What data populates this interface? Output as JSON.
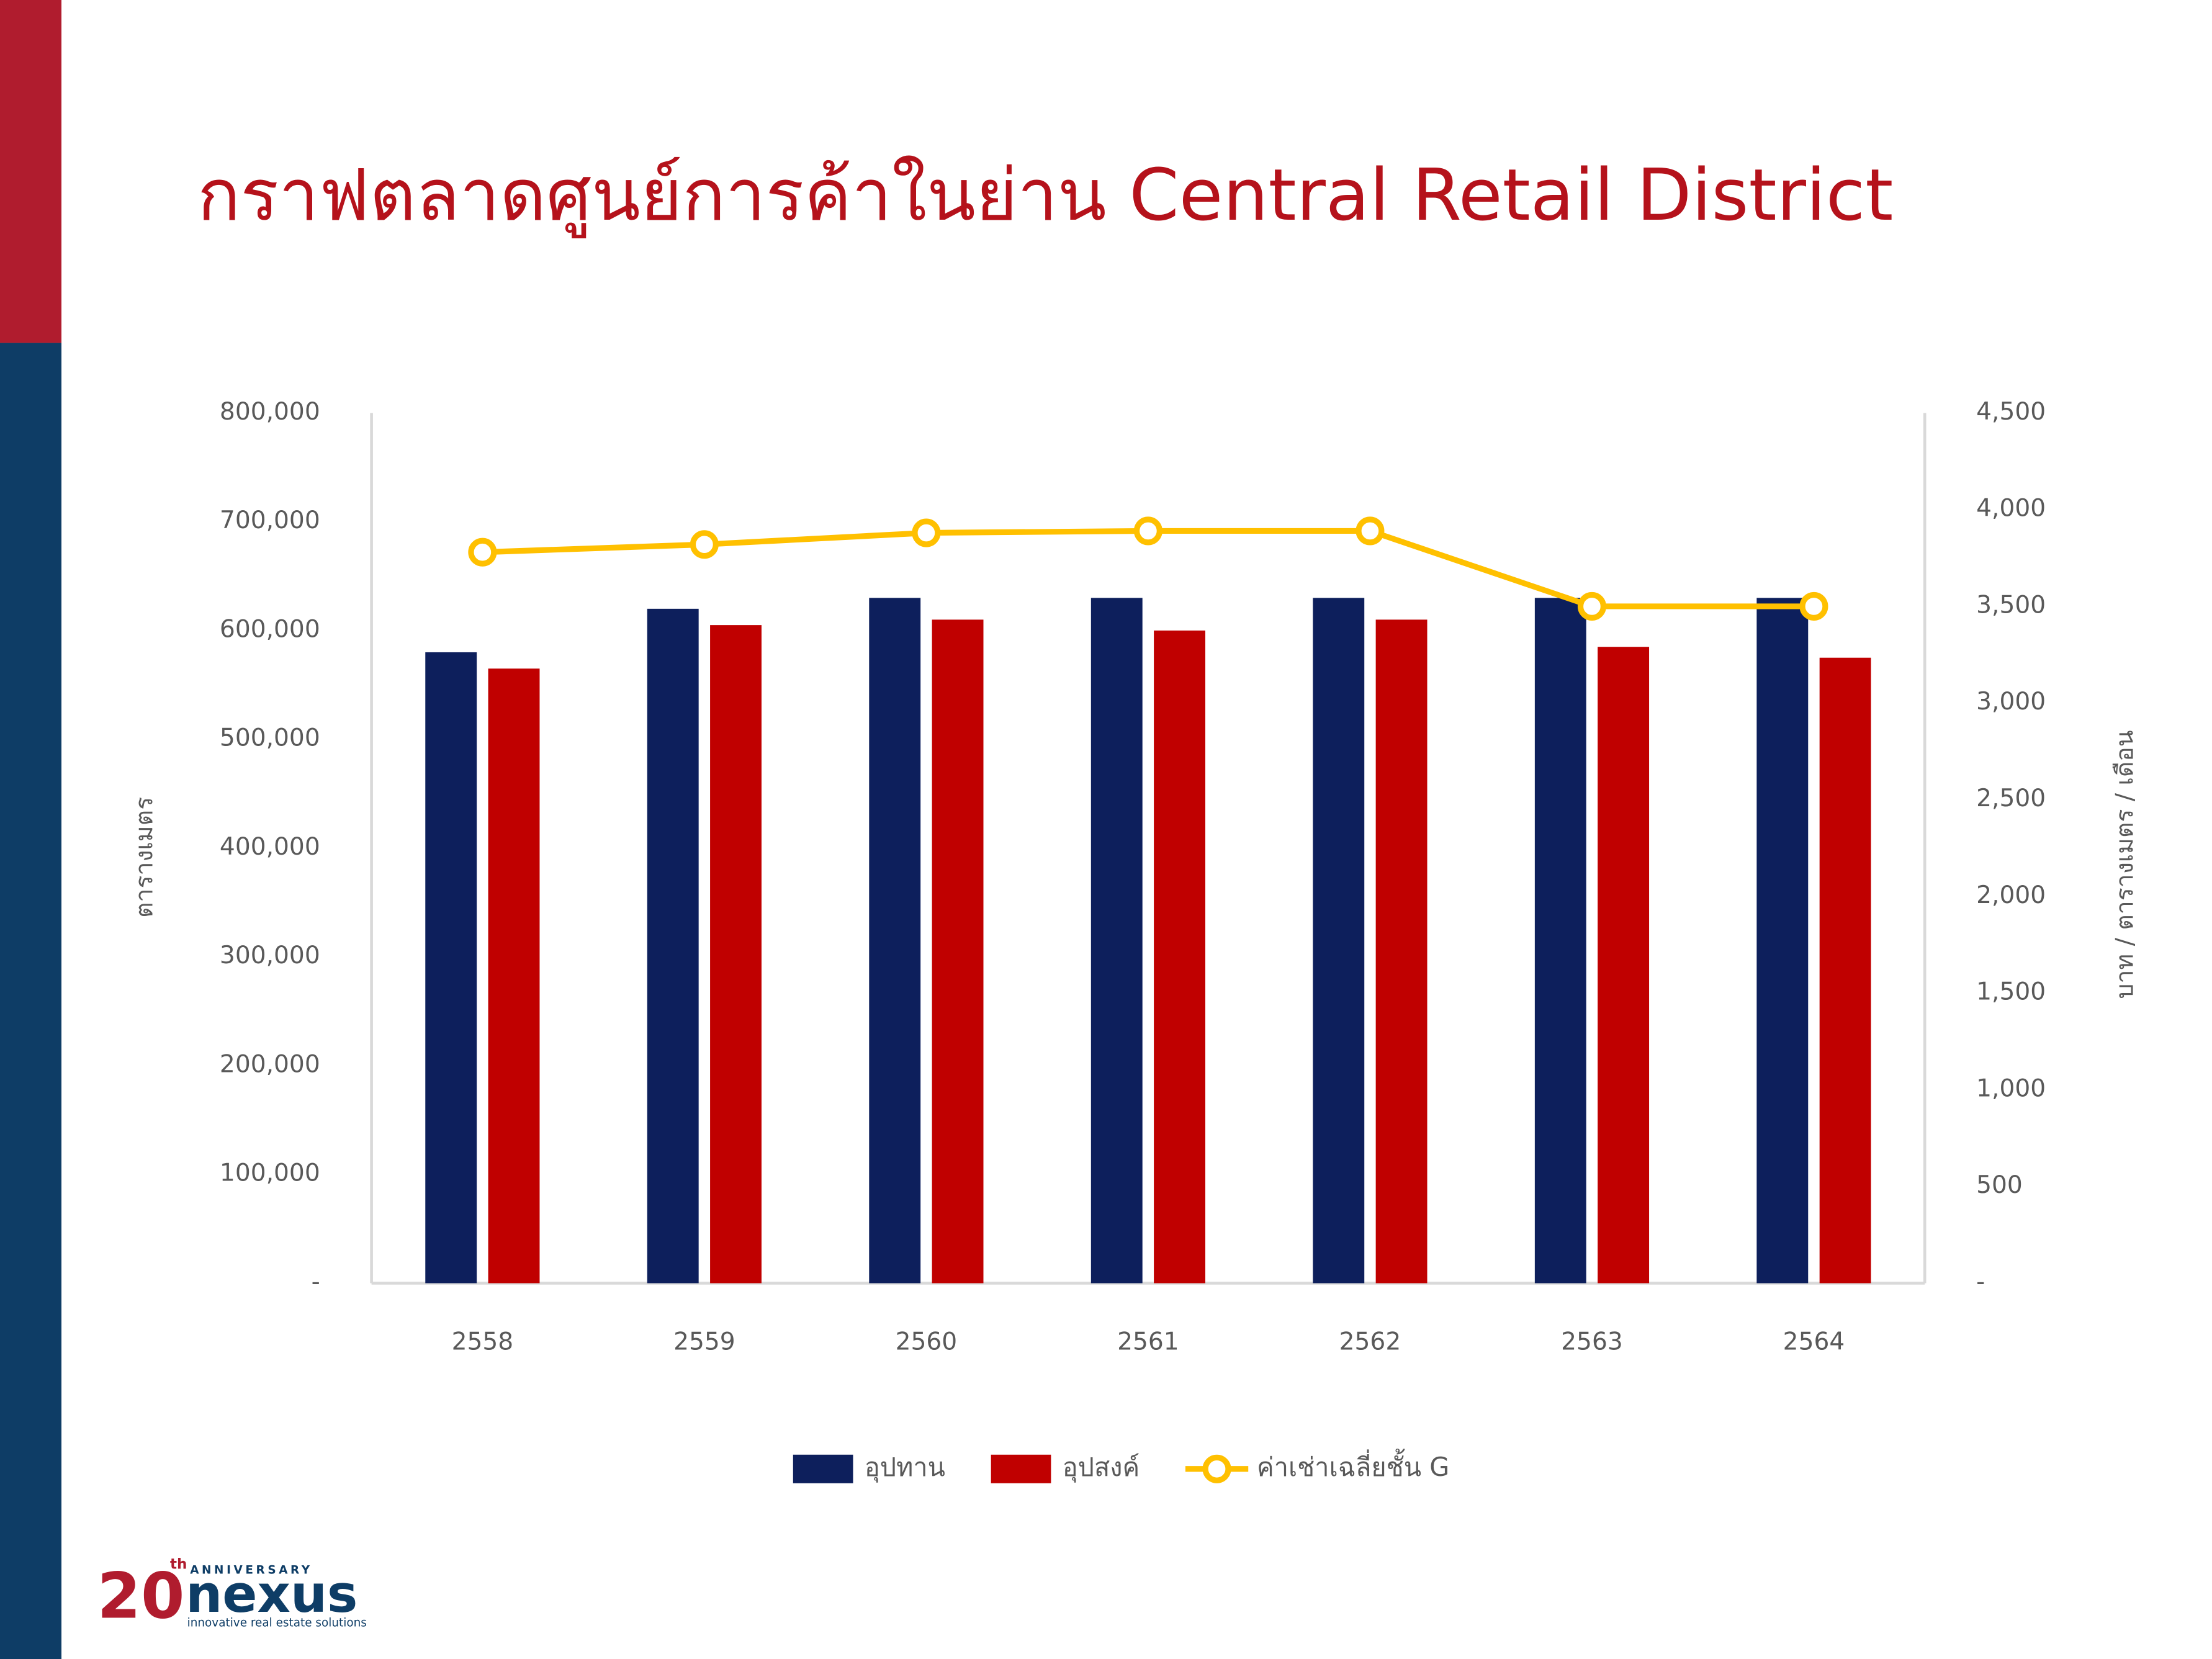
{
  "title": "กราฟตลาดศูนย์การค้าในย่าน Central Retail District",
  "logo": {
    "number": "20",
    "suffix": "th",
    "anniversary": "ANNIVERSARY",
    "name": "nexus",
    "tagline": "innovative real estate solutions"
  },
  "chart_data": {
    "type": "bar",
    "categories": [
      "2558",
      "2559",
      "2560",
      "2561",
      "2562",
      "2563",
      "2564"
    ],
    "series": [
      {
        "name": "อุปทาน",
        "color": "#0d1f5c",
        "values": [
          580000,
          620000,
          630000,
          630000,
          630000,
          630000,
          630000
        ]
      },
      {
        "name": "อุปสงค์",
        "color": "#c00000",
        "values": [
          565000,
          605000,
          610000,
          600000,
          610000,
          585000,
          575000
        ]
      },
      {
        "name": "ค่าเช่าเฉลี่ยชั้น G",
        "type": "line",
        "axis": "y2",
        "color": "#ffc000",
        "values": [
          3780,
          3820,
          3880,
          3890,
          3890,
          3500,
          3500
        ]
      }
    ],
    "y_label": "ตารางเมตร",
    "y2_label": "บาท / ตารางเมตร / เดือน",
    "ylim": [
      0,
      800000
    ],
    "yticks": [
      {
        "value": 0,
        "label": "-"
      },
      {
        "value": 100000,
        "label": "100,000"
      },
      {
        "value": 200000,
        "label": "200,000"
      },
      {
        "value": 300000,
        "label": "300,000"
      },
      {
        "value": 400000,
        "label": "400,000"
      },
      {
        "value": 500000,
        "label": "500,000"
      },
      {
        "value": 600000,
        "label": "600,000"
      },
      {
        "value": 700000,
        "label": "700,000"
      },
      {
        "value": 800000,
        "label": "800,000"
      }
    ],
    "y2lim": [
      0,
      4500
    ],
    "y2ticks": [
      {
        "value": 0,
        "label": "-"
      },
      500,
      {
        "value": 1000,
        "label": "1,000"
      },
      {
        "value": 1500,
        "label": "1,500"
      },
      {
        "value": 2000,
        "label": "2,000"
      },
      {
        "value": 2500,
        "label": "2,500"
      },
      {
        "value": 3000,
        "label": "3,000"
      },
      {
        "value": 3500,
        "label": "3,500"
      },
      {
        "value": 4000,
        "label": "4,000"
      },
      {
        "value": 4500,
        "label": "4,500"
      }
    ],
    "grid": false,
    "legend": "bottom"
  }
}
